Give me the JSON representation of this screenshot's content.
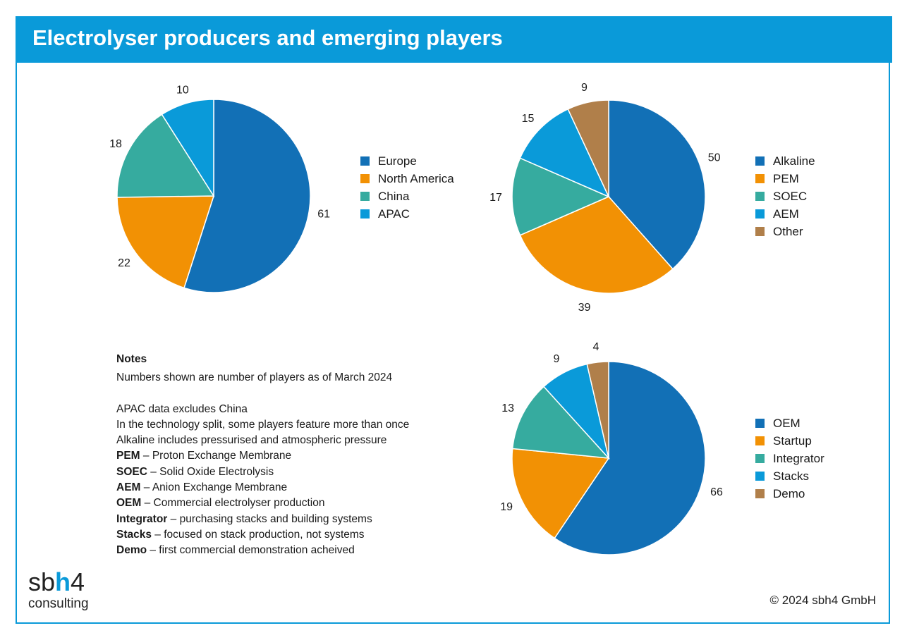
{
  "title": "Electrolyser producers and emerging players",
  "chart_data": [
    {
      "type": "pie",
      "categories": [
        "Europe",
        "North America",
        "China",
        "APAC"
      ],
      "values": [
        61,
        22,
        18,
        10
      ],
      "colors": [
        "#1270b6",
        "#f29104",
        "#36ab9f",
        "#0a9ad9"
      ],
      "legend": "right"
    },
    {
      "type": "pie",
      "categories": [
        "Alkaline",
        "PEM",
        "SOEC",
        "AEM",
        "Other"
      ],
      "values": [
        50,
        39,
        17,
        15,
        9
      ],
      "colors": [
        "#1270b6",
        "#f29104",
        "#36ab9f",
        "#0a9ad9",
        "#b07f4a"
      ],
      "legend": "right"
    },
    {
      "type": "pie",
      "categories": [
        "OEM",
        "Startup",
        "Integrator",
        "Stacks",
        "Demo"
      ],
      "values": [
        66,
        19,
        13,
        9,
        4
      ],
      "colors": [
        "#1270b6",
        "#f29104",
        "#36ab9f",
        "#0a9ad9",
        "#b07f4a"
      ],
      "legend": "right"
    }
  ],
  "notes": {
    "title": "Notes",
    "line1": "Numbers shown are number of players as of March 2024",
    "line2": "APAC data excludes China",
    "line3": "In the technology split, some players feature more than once",
    "line4": "Alkaline includes pressurised and atmospheric pressure",
    "defs": [
      {
        "term": "PEM",
        "text": " – Proton Exchange Membrane"
      },
      {
        "term": "SOEC",
        "text": " – Solid Oxide Electrolysis"
      },
      {
        "term": "AEM",
        "text": " – Anion Exchange Membrane"
      },
      {
        "term": "OEM",
        "text": " – Commercial electrolyser production"
      },
      {
        "term": "Integrator",
        "text": " – purchasing stacks and building systems"
      },
      {
        "term": "Stacks",
        "text": " – focused on stack production, not systems"
      },
      {
        "term": "Demo",
        "text": " – first commercial demonstration acheived"
      }
    ]
  },
  "logo": {
    "part1": "sb",
    "part2": "h",
    "part3": "4",
    "sub": "consulting"
  },
  "copyright": "© 2024 sbh4 GmbH"
}
